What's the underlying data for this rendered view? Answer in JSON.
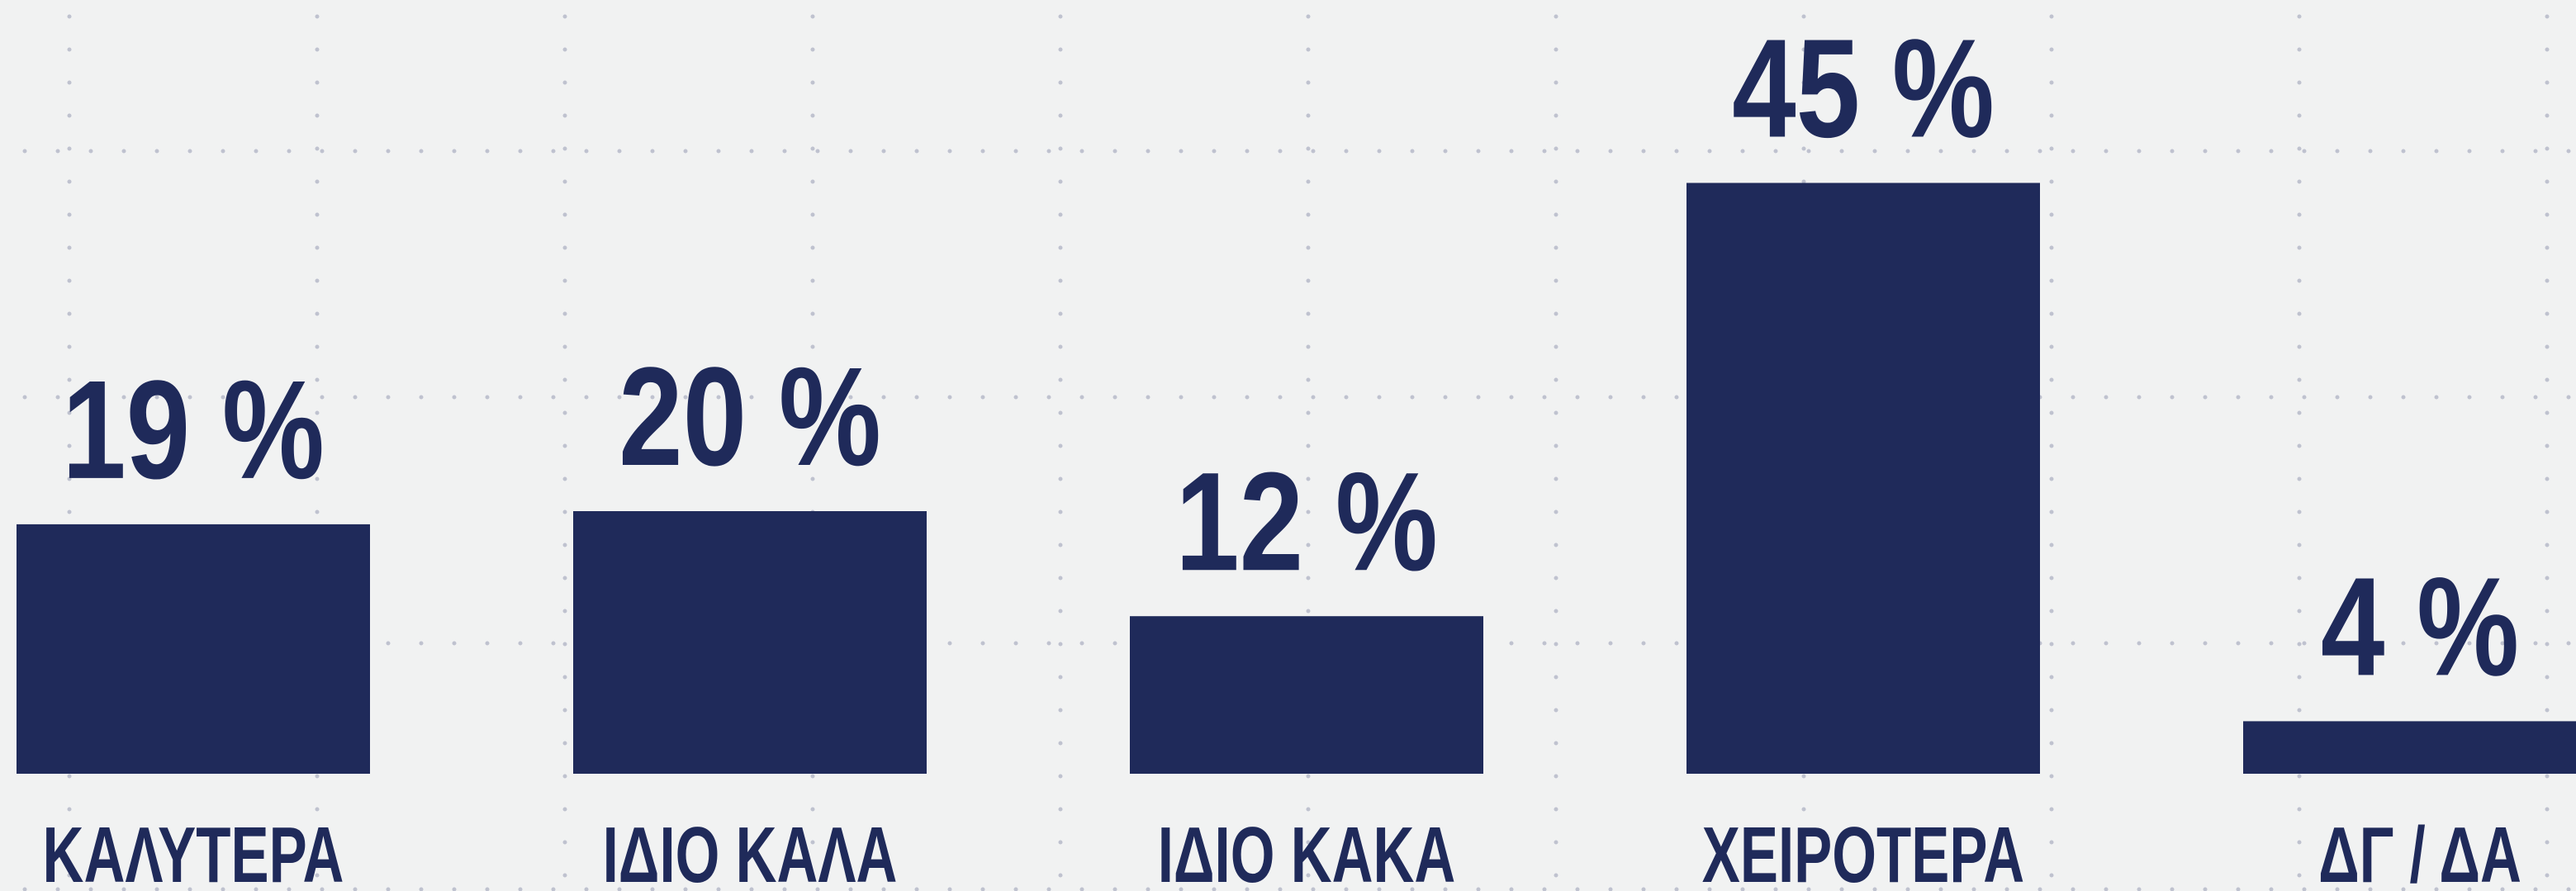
{
  "chart_data": {
    "type": "bar",
    "categories": [
      "ΚΑΛΥΤΕΡΑ",
      "ΙΔΙΟ ΚΑΛΑ",
      "ΙΔΙΟ ΚΑΚΑ",
      "ΧΕΙΡΟΤΕΡΑ",
      "ΔΓ / ΔΑ"
    ],
    "values": [
      19,
      20,
      12,
      45,
      4
    ],
    "value_labels": [
      "19 %",
      "20 %",
      "12 %",
      "45 %",
      "4 %"
    ],
    "color": "#1f2a5a"
  }
}
